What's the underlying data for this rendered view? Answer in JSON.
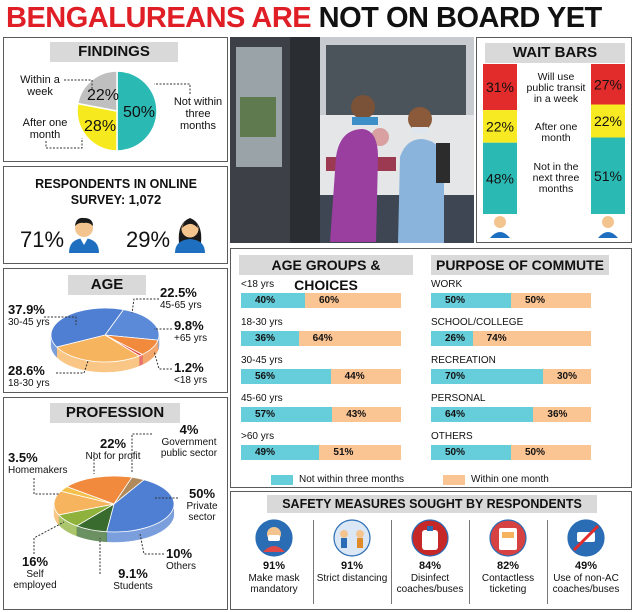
{
  "headline": {
    "part1": "BENGALUREANS ARE",
    "part2": "NOT ON BOARD YET"
  },
  "colors": {
    "red": "#e01e26",
    "yellow": "#f6ea1f",
    "teal": "#2bb9b3",
    "grey": "#bfbfbf",
    "orange": "#f7b45e",
    "blue": "#4f7fd2",
    "light_blue": "#66cdda",
    "light_orange": "#fbc493"
  },
  "findings": {
    "title": "FINDINGS",
    "slices": [
      {
        "label": "Not within three months",
        "value": 50,
        "display": "50%"
      },
      {
        "label": "Within a week",
        "value": 28,
        "display": "28%"
      },
      {
        "label": "After one month",
        "value": 22,
        "display": "22%"
      }
    ],
    "label_week": "Within a week",
    "label_month": "After one month",
    "label_not": "Not within three months"
  },
  "survey": {
    "title": "RESPONDENTS IN ONLINE SURVEY:",
    "count": "1,072",
    "male_pct": "71%",
    "female_pct": "29%"
  },
  "age": {
    "title": "AGE",
    "slices": [
      {
        "label": "45-65 yrs",
        "value": 22.5,
        "display": "22.5%"
      },
      {
        "label": "+65 yrs",
        "value": 9.8,
        "display": "9.8%"
      },
      {
        "label": "<18 yrs",
        "value": 1.2,
        "display": "1.2%"
      },
      {
        "label": "18-30 yrs",
        "value": 28.6,
        "display": "28.6%"
      },
      {
        "label": "30-45 yrs",
        "value": 37.9,
        "display": "37.9%"
      }
    ]
  },
  "profession": {
    "title": "PROFESSION",
    "slices": [
      {
        "label": "Private sector",
        "value": 50,
        "display": "50%"
      },
      {
        "label": "Others",
        "value": 10,
        "display": "10%"
      },
      {
        "label": "Students",
        "value": 9.1,
        "display": "9.1%"
      },
      {
        "label": "Self employed",
        "value": 16,
        "display": "16%"
      },
      {
        "label": "Homemakers",
        "value": 3.5,
        "display": "3.5%"
      },
      {
        "label": "Not for profit",
        "value": 22,
        "display": "22%"
      },
      {
        "label": "Government public sector",
        "value": 4,
        "display": "4%"
      }
    ]
  },
  "wait_bars": {
    "title": "WAIT BARS",
    "labels": [
      "Will use public transit in a week",
      "After one month",
      "Not in the next three months"
    ],
    "male": [
      "31%",
      "22%",
      "48%"
    ],
    "female": [
      "27%",
      "22%",
      "51%"
    ]
  },
  "age_groups": {
    "title": "AGE GROUPS & CHOICES",
    "rows": [
      {
        "label": "<18 yrs",
        "not": "40%",
        "within": "60%",
        "not_val": 40
      },
      {
        "label": "18-30 yrs",
        "not": "36%",
        "within": "64%",
        "not_val": 36
      },
      {
        "label": "30-45 yrs",
        "not": "56%",
        "within": "44%",
        "not_val": 56
      },
      {
        "label": "45-60 yrs",
        "not": "57%",
        "within": "43%",
        "not_val": 57
      },
      {
        "label": ">60 yrs",
        "not": "49%",
        "within": "51%",
        "not_val": 49
      }
    ]
  },
  "purpose": {
    "title": "PURPOSE OF COMMUTE",
    "rows": [
      {
        "label": "WORK",
        "not": "50%",
        "within": "50%",
        "not_val": 50
      },
      {
        "label": "SCHOOL/COLLEGE",
        "not": "26%",
        "within": "74%",
        "not_val": 26
      },
      {
        "label": "RECREATION",
        "not": "70%",
        "within": "30%",
        "not_val": 70
      },
      {
        "label": "PERSONAL",
        "not": "64%",
        "within": "36%",
        "not_val": 64
      },
      {
        "label": "OTHERS",
        "not": "50%",
        "within": "50%",
        "not_val": 50
      }
    ]
  },
  "legend": {
    "not": "Not within three months",
    "within": "Within one month"
  },
  "safety": {
    "title": "SAFETY MEASURES SOUGHT BY RESPONDENTS",
    "items": [
      {
        "pct": "91%",
        "label": "Make mask mandatory",
        "icon": "mask-icon"
      },
      {
        "pct": "91%",
        "label": "Strict distancing",
        "icon": "distancing-icon"
      },
      {
        "pct": "84%",
        "label": "Disinfect coaches/buses",
        "icon": "disinfect-icon"
      },
      {
        "pct": "82%",
        "label": "Contactless ticketing",
        "icon": "ticketing-icon"
      },
      {
        "pct": "49%",
        "label": "Use of non-AC coaches/buses",
        "icon": "no-ac-icon"
      }
    ]
  },
  "chart_data": [
    {
      "type": "pie",
      "title": "FINDINGS",
      "categories": [
        "Not within three months",
        "Within a week",
        "After one month"
      ],
      "values": [
        50,
        28,
        22
      ]
    },
    {
      "type": "pie",
      "title": "AGE",
      "categories": [
        "45-65 yrs",
        "+65 yrs",
        "<18 yrs",
        "18-30 yrs",
        "30-45 yrs"
      ],
      "values": [
        22.5,
        9.8,
        1.2,
        28.6,
        37.9
      ]
    },
    {
      "type": "pie",
      "title": "PROFESSION",
      "categories": [
        "Private sector",
        "Others",
        "Students",
        "Self employed",
        "Homemakers",
        "Not for profit",
        "Government public sector"
      ],
      "values": [
        50,
        10,
        9.1,
        16,
        3.5,
        22,
        4
      ]
    },
    {
      "type": "bar",
      "title": "AGE GROUPS & CHOICES",
      "categories": [
        "<18 yrs",
        "18-30 yrs",
        "30-45 yrs",
        "45-60 yrs",
        ">60 yrs"
      ],
      "series": [
        {
          "name": "Not within three months",
          "values": [
            40,
            36,
            56,
            57,
            49
          ]
        },
        {
          "name": "Within one month",
          "values": [
            60,
            64,
            44,
            43,
            51
          ]
        }
      ]
    },
    {
      "type": "bar",
      "title": "PURPOSE OF COMMUTE",
      "categories": [
        "WORK",
        "SCHOOL/COLLEGE",
        "RECREATION",
        "PERSONAL",
        "OTHERS"
      ],
      "series": [
        {
          "name": "Not within three months",
          "values": [
            50,
            26,
            70,
            64,
            50
          ]
        },
        {
          "name": "Within one month",
          "values": [
            50,
            74,
            30,
            36,
            50
          ]
        }
      ]
    },
    {
      "type": "bar",
      "title": "WAIT BARS",
      "categories": [
        "Will use public transit in a week",
        "After one month",
        "Not in the next three months"
      ],
      "series": [
        {
          "values": [
            31,
            22,
            48
          ]
        },
        {
          "values": [
            27,
            22,
            51
          ]
        }
      ]
    },
    {
      "type": "bar",
      "title": "SAFETY MEASURES SOUGHT BY RESPONDENTS",
      "categories": [
        "Make mask mandatory",
        "Strict distancing",
        "Disinfect coaches/buses",
        "Contactless ticketing",
        "Use of non-AC coaches/buses"
      ],
      "values": [
        91,
        91,
        84,
        82,
        49
      ]
    }
  ]
}
